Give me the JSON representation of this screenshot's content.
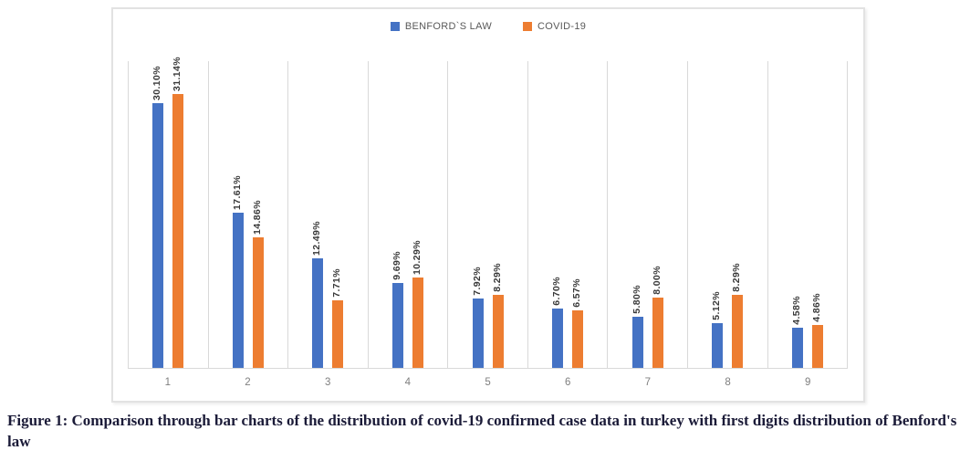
{
  "caption": "Figure 1: Comparison through bar charts of the distribution of covid-19 confirmed case data in turkey with first digits distribution of Benford's law",
  "colors": {
    "benford_blue": "#4472C4",
    "covid_orange": "#ED7D31",
    "gridline": "#D9D9D9",
    "axis_text": "#7F7F7F",
    "data_label_text": "#383838",
    "legend_text": "#595959"
  },
  "chart_data": {
    "type": "bar",
    "title": "",
    "xlabel": "",
    "ylabel": "",
    "categories": [
      "1",
      "2",
      "3",
      "4",
      "5",
      "6",
      "7",
      "8",
      "9"
    ],
    "series": [
      {
        "name": "BENFORD`S LAW",
        "color": "#4472C4",
        "values": [
          30.1,
          17.61,
          12.49,
          9.69,
          7.92,
          6.7,
          5.8,
          5.12,
          4.58
        ],
        "labels": [
          "30.10%",
          "17.61%",
          "12.49%",
          "9.69%",
          "7.92%",
          "6.70%",
          "5.80%",
          "5.12%",
          "4.58%"
        ]
      },
      {
        "name": "COVID-19",
        "color": "#ED7D31",
        "values": [
          31.14,
          14.86,
          7.71,
          10.29,
          8.29,
          6.57,
          8.0,
          8.29,
          4.86
        ],
        "labels": [
          "31.14%",
          "14.86%",
          "7.71%",
          "10.29%",
          "8.29%",
          "6.57%",
          "8.00%",
          "8.29%",
          "4.86%"
        ]
      }
    ],
    "ylim": [
      0,
      35
    ],
    "grid": "vertical-category-separators-only",
    "y_axis_labels_visible": false,
    "legend_position": "top-center",
    "data_label_rotation": 90
  }
}
